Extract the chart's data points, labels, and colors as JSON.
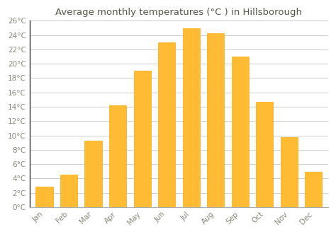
{
  "title": "Average monthly temperatures (°C ) in Hillsborough",
  "months": [
    "Jan",
    "Feb",
    "Mar",
    "Apr",
    "May",
    "Jun",
    "Jul",
    "Aug",
    "Sep",
    "Oct",
    "Nov",
    "Dec"
  ],
  "values": [
    2.8,
    4.5,
    9.3,
    14.2,
    19.0,
    23.0,
    25.0,
    24.3,
    21.0,
    14.7,
    9.8,
    4.9
  ],
  "bar_color": "#FFBB33",
  "bar_edge_color": "#FFAA00",
  "background_color": "#FFFFFF",
  "plot_bg_color": "#FFFFFF",
  "grid_color": "#CCCCCC",
  "tick_label_color": "#888877",
  "title_color": "#555544",
  "ylim": [
    0,
    26
  ],
  "yticks": [
    0,
    2,
    4,
    6,
    8,
    10,
    12,
    14,
    16,
    18,
    20,
    22,
    24,
    26
  ],
  "title_fontsize": 9.5,
  "tick_fontsize": 7.5,
  "bar_width": 0.7
}
